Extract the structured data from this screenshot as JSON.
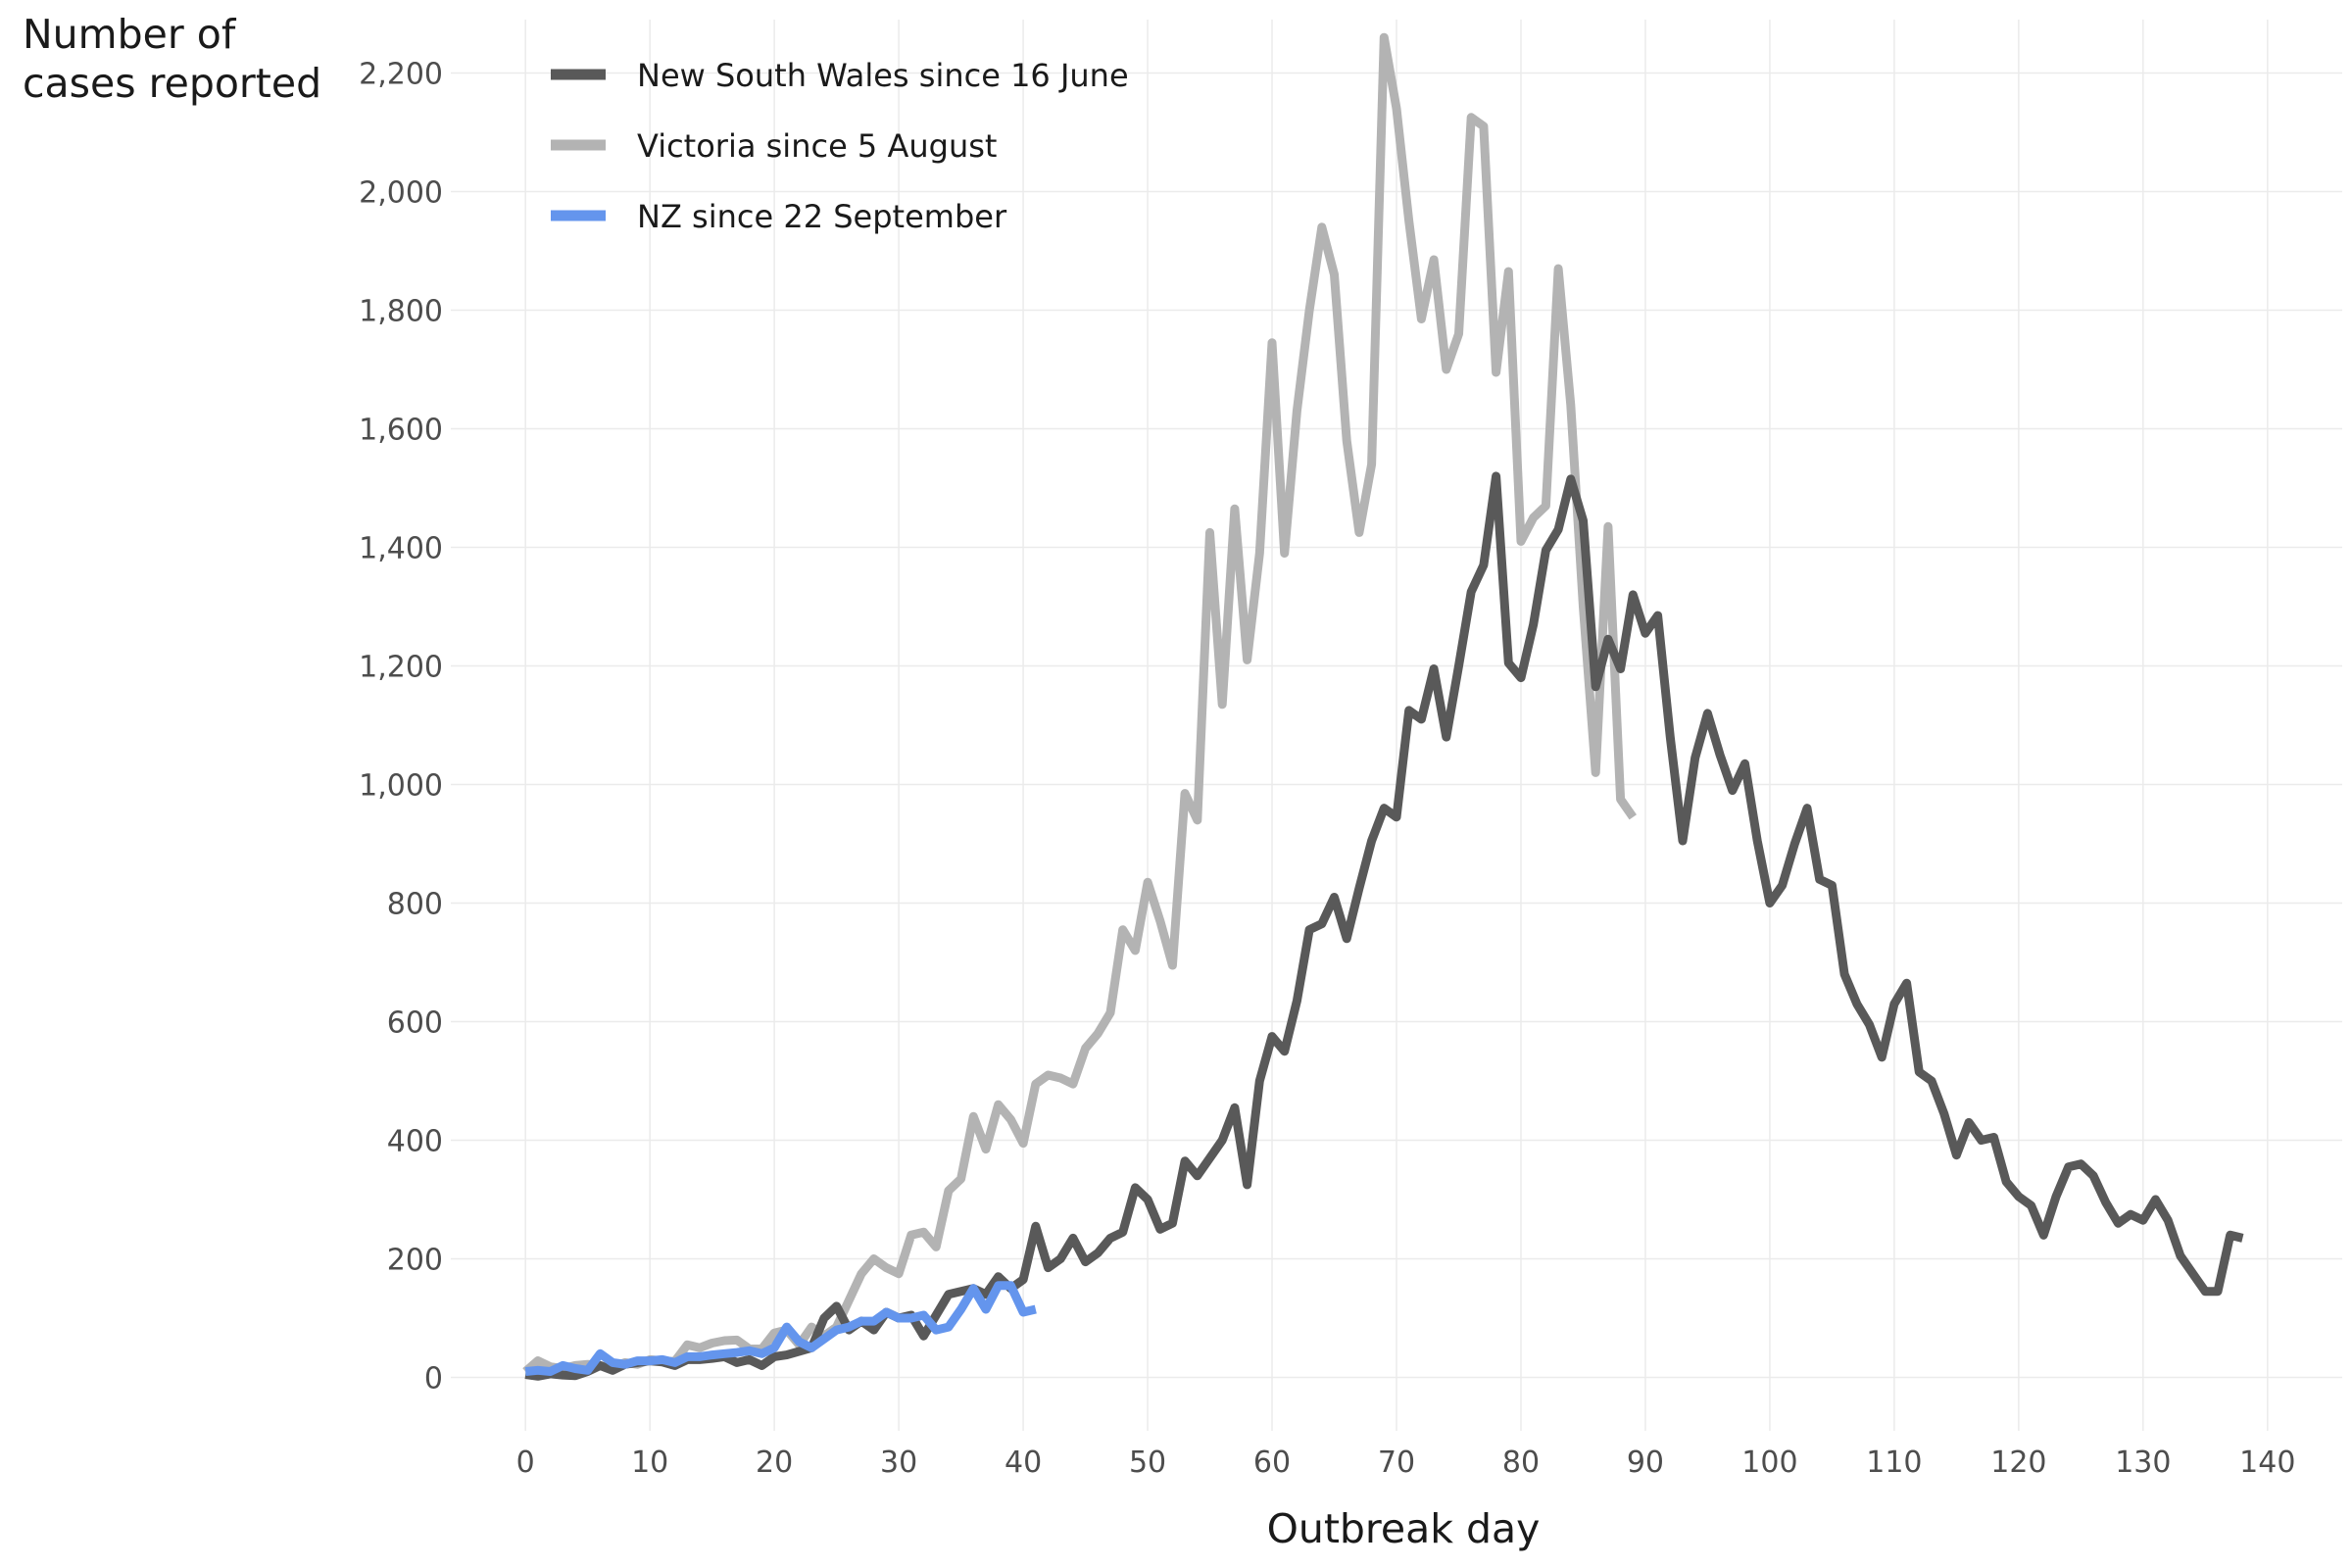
{
  "chart_data": {
    "type": "line",
    "ylabel_line1": "Number of",
    "ylabel_line2": "cases reported",
    "xlabel": "Outbreak day",
    "xlim": [
      -6,
      146
    ],
    "ylim": [
      -90,
      2290
    ],
    "x_ticks": [
      0,
      10,
      20,
      30,
      40,
      50,
      60,
      70,
      80,
      90,
      100,
      110,
      120,
      130,
      140
    ],
    "y_ticks": [
      0,
      200,
      400,
      600,
      800,
      1000,
      1200,
      1400,
      1600,
      1800,
      2000,
      2200
    ],
    "x_tick_labels": [
      "0",
      "10",
      "20",
      "30",
      "40",
      "50",
      "60",
      "70",
      "80",
      "90",
      "100",
      "110",
      "120",
      "130",
      "140"
    ],
    "y_tick_labels": [
      "0",
      "200",
      "400",
      "600",
      "800",
      "1,000",
      "1,200",
      "1,400",
      "1,600",
      "1,800",
      "2,000",
      "2,200"
    ],
    "grid": true,
    "legend_position": "top-left",
    "series": [
      {
        "name": "Victoria since 5 August",
        "color": "#b3b3b3",
        "values": [
          10,
          28,
          18,
          15,
          20,
          22,
          20,
          17,
          25,
          22,
          30,
          28,
          27,
          55,
          50,
          58,
          62,
          63,
          48,
          48,
          75,
          80,
          55,
          85,
          70,
          85,
          130,
          175,
          200,
          185,
          175,
          240,
          245,
          220,
          315,
          335,
          440,
          385,
          460,
          435,
          395,
          495,
          510,
          505,
          495,
          555,
          580,
          615,
          755,
          720,
          835,
          770,
          695,
          985,
          940,
          1425,
          1135,
          1465,
          1210,
          1390,
          1745,
          1390,
          1630,
          1800,
          1940,
          1860,
          1580,
          1425,
          1540,
          2260,
          2140,
          1950,
          1785,
          1885,
          1700,
          1760,
          2125,
          2110,
          1695,
          1865,
          1410,
          1450,
          1470,
          1870,
          1640,
          1300,
          1020,
          1435,
          975,
          945
        ]
      },
      {
        "name": "New South Wales since 16 June",
        "color": "#595959",
        "values": [
          5,
          2,
          6,
          4,
          3,
          10,
          20,
          12,
          22,
          25,
          28,
          26,
          20,
          30,
          30,
          32,
          35,
          25,
          30,
          20,
          35,
          38,
          44,
          50,
          100,
          120,
          80,
          95,
          80,
          110,
          100,
          105,
          70,
          105,
          140,
          145,
          150,
          140,
          170,
          150,
          165,
          255,
          185,
          200,
          235,
          195,
          210,
          235,
          245,
          320,
          300,
          250,
          260,
          365,
          340,
          370,
          400,
          455,
          325,
          500,
          575,
          550,
          635,
          755,
          765,
          810,
          740,
          825,
          905,
          960,
          945,
          1125,
          1110,
          1195,
          1080,
          1200,
          1325,
          1370,
          1520,
          1205,
          1180,
          1270,
          1395,
          1430,
          1515,
          1445,
          1165,
          1245,
          1195,
          1320,
          1255,
          1285,
          1080,
          905,
          1045,
          1120,
          1050,
          990,
          1035,
          905,
          800,
          830,
          900,
          960,
          840,
          830,
          680,
          630,
          595,
          540,
          630,
          665,
          515,
          500,
          445,
          375,
          430,
          400,
          405,
          330,
          305,
          290,
          240,
          305,
          355,
          360,
          340,
          295,
          260,
          275,
          265,
          300,
          265,
          205,
          175,
          145,
          145,
          240,
          235
        ]
      },
      {
        "name": "NZ since 22 September",
        "color": "#6495ed",
        "values": [
          10,
          12,
          10,
          20,
          15,
          12,
          40,
          25,
          22,
          28,
          28,
          30,
          25,
          35,
          35,
          38,
          40,
          42,
          45,
          40,
          50,
          85,
          60,
          50,
          65,
          80,
          85,
          95,
          95,
          110,
          100,
          100,
          105,
          80,
          85,
          115,
          150,
          115,
          155,
          155,
          110,
          115
        ]
      }
    ]
  }
}
